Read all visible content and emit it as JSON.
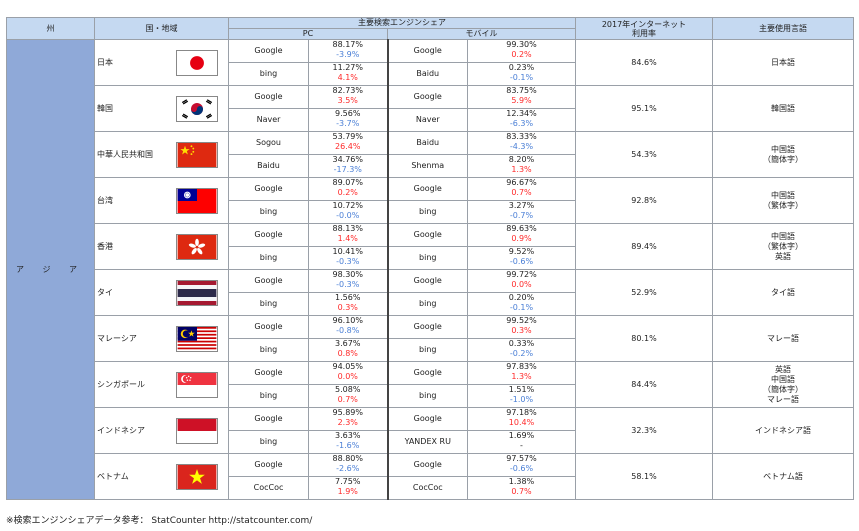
{
  "header": {
    "region_col": "州",
    "country_col": "国・地域",
    "engine_share": "主要検索エンジンシェア",
    "pc": "PC",
    "mobile": "モバイル",
    "internet_rate": "2017年インターネット\n利用率",
    "language": "主要使用言語"
  },
  "region": "ア ジ ア",
  "countries": [
    {
      "name": "日本",
      "flag": "japan-flag-icon",
      "pc": [
        {
          "engine": "Google",
          "pct": "88.17%",
          "chg": "-3.9%",
          "dir": "down"
        },
        {
          "engine": "bing",
          "pct": "11.27%",
          "chg": "4.1%",
          "dir": "up"
        }
      ],
      "mobile": [
        {
          "engine": "Google",
          "pct": "99.30%",
          "chg": "0.2%",
          "dir": "up"
        },
        {
          "engine": "Baidu",
          "pct": "0.23%",
          "chg": "-0.1%",
          "dir": "down"
        }
      ],
      "rate": "84.6%",
      "lang": [
        "日本語"
      ]
    },
    {
      "name": "韓国",
      "flag": "korea-flag-icon",
      "pc": [
        {
          "engine": "Google",
          "pct": "82.73%",
          "chg": "3.5%",
          "dir": "up"
        },
        {
          "engine": "Naver",
          "pct": "9.56%",
          "chg": "-3.7%",
          "dir": "down"
        }
      ],
      "mobile": [
        {
          "engine": "Google",
          "pct": "83.75%",
          "chg": "5.9%",
          "dir": "up"
        },
        {
          "engine": "Naver",
          "pct": "12.34%",
          "chg": "-6.3%",
          "dir": "down"
        }
      ],
      "rate": "95.1%",
      "lang": [
        "韓国語"
      ]
    },
    {
      "name": "中華人民共和国",
      "flag": "china-flag-icon",
      "pc": [
        {
          "engine": "Sogou",
          "pct": "53.79%",
          "chg": "26.4%",
          "dir": "up"
        },
        {
          "engine": "Baidu",
          "pct": "34.76%",
          "chg": "-17.3%",
          "dir": "down"
        }
      ],
      "mobile": [
        {
          "engine": "Baidu",
          "pct": "83.33%",
          "chg": "-4.3%",
          "dir": "down"
        },
        {
          "engine": "Shenma",
          "pct": "8.20%",
          "chg": "1.3%",
          "dir": "up"
        }
      ],
      "rate": "54.3%",
      "lang": [
        "中国語",
        "（簡体字）"
      ]
    },
    {
      "name": "台湾",
      "flag": "taiwan-flag-icon",
      "pc": [
        {
          "engine": "Google",
          "pct": "89.07%",
          "chg": "0.2%",
          "dir": "up"
        },
        {
          "engine": "bing",
          "pct": "10.72%",
          "chg": "-0.0%",
          "dir": "down"
        }
      ],
      "mobile": [
        {
          "engine": "Google",
          "pct": "96.67%",
          "chg": "0.7%",
          "dir": "up"
        },
        {
          "engine": "bing",
          "pct": "3.27%",
          "chg": "-0.7%",
          "dir": "down"
        }
      ],
      "rate": "92.8%",
      "lang": [
        "中国語",
        "（繁体字）"
      ]
    },
    {
      "name": "香港",
      "flag": "hongkong-flag-icon",
      "pc": [
        {
          "engine": "Google",
          "pct": "88.13%",
          "chg": "1.4%",
          "dir": "up"
        },
        {
          "engine": "bing",
          "pct": "10.41%",
          "chg": "-0.3%",
          "dir": "down"
        }
      ],
      "mobile": [
        {
          "engine": "Google",
          "pct": "89.63%",
          "chg": "0.9%",
          "dir": "up"
        },
        {
          "engine": "bing",
          "pct": "9.52%",
          "chg": "-0.6%",
          "dir": "down"
        }
      ],
      "rate": "89.4%",
      "lang": [
        "中国語",
        "（繁体字）",
        "英語"
      ]
    },
    {
      "name": "タイ",
      "flag": "thailand-flag-icon",
      "pc": [
        {
          "engine": "Google",
          "pct": "98.30%",
          "chg": "-0.3%",
          "dir": "down"
        },
        {
          "engine": "bing",
          "pct": "1.56%",
          "chg": "0.3%",
          "dir": "up"
        }
      ],
      "mobile": [
        {
          "engine": "Google",
          "pct": "99.72%",
          "chg": "0.0%",
          "dir": "up"
        },
        {
          "engine": "bing",
          "pct": "0.20%",
          "chg": "-0.1%",
          "dir": "down"
        }
      ],
      "rate": "52.9%",
      "lang": [
        "タイ語"
      ]
    },
    {
      "name": "マレーシア",
      "flag": "malaysia-flag-icon",
      "pc": [
        {
          "engine": "Google",
          "pct": "96.10%",
          "chg": "-0.8%",
          "dir": "down"
        },
        {
          "engine": "bing",
          "pct": "3.67%",
          "chg": "0.8%",
          "dir": "up"
        }
      ],
      "mobile": [
        {
          "engine": "Google",
          "pct": "99.52%",
          "chg": "0.3%",
          "dir": "up"
        },
        {
          "engine": "bing",
          "pct": "0.33%",
          "chg": "-0.2%",
          "dir": "down"
        }
      ],
      "rate": "80.1%",
      "lang": [
        "マレー語"
      ]
    },
    {
      "name": "シンガポール",
      "flag": "singapore-flag-icon",
      "pc": [
        {
          "engine": "Google",
          "pct": "94.05%",
          "chg": "0.0%",
          "dir": "up"
        },
        {
          "engine": "bing",
          "pct": "5.08%",
          "chg": "0.7%",
          "dir": "up"
        }
      ],
      "mobile": [
        {
          "engine": "Google",
          "pct": "97.83%",
          "chg": "1.3%",
          "dir": "up"
        },
        {
          "engine": "bing",
          "pct": "1.51%",
          "chg": "-1.0%",
          "dir": "down"
        }
      ],
      "rate": "84.4%",
      "lang": [
        "英語",
        "中国語",
        "（簡体字）",
        "マレー語"
      ]
    },
    {
      "name": "インドネシア",
      "flag": "indonesia-flag-icon",
      "pc": [
        {
          "engine": "Google",
          "pct": "95.89%",
          "chg": "2.3%",
          "dir": "up"
        },
        {
          "engine": "bing",
          "pct": "3.63%",
          "chg": "-1.6%",
          "dir": "down"
        }
      ],
      "mobile": [
        {
          "engine": "Google",
          "pct": "97.18%",
          "chg": "10.4%",
          "dir": "up"
        },
        {
          "engine": "YANDEX RU",
          "pct": "1.69%",
          "chg": "-",
          "dir": "neutral"
        }
      ],
      "rate": "32.3%",
      "lang": [
        "インドネシア語"
      ]
    },
    {
      "name": "ベトナム",
      "flag": "vietnam-flag-icon",
      "pc": [
        {
          "engine": "Google",
          "pct": "88.80%",
          "chg": "-2.6%",
          "dir": "down"
        },
        {
          "engine": "CocCoc",
          "pct": "7.75%",
          "chg": "1.9%",
          "dir": "up"
        }
      ],
      "mobile": [
        {
          "engine": "Google",
          "pct": "97.57%",
          "chg": "-0.6%",
          "dir": "down"
        },
        {
          "engine": "CocCoc",
          "pct": "1.38%",
          "chg": "0.7%",
          "dir": "up"
        }
      ],
      "rate": "58.1%",
      "lang": [
        "ベトナム語"
      ]
    }
  ],
  "footnote": "※検索エンジンシェアデータ参考： StatCounter http://statcounter.com/"
}
